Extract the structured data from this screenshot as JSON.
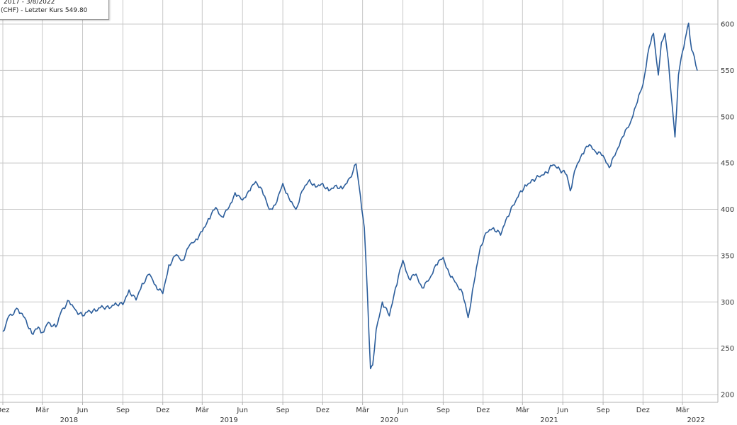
{
  "legend": {
    "range_text": "2017 - 3/8/2022",
    "series_text": "(CHF) - Letzter Kurs 549.80"
  },
  "colors": {
    "line": "#2b5d9b",
    "grid": "#c8c8c8"
  },
  "chart_data": {
    "type": "line",
    "title": "",
    "xlabel": "",
    "ylabel": "",
    "ylim": [
      195,
      615
    ],
    "y_ticks": [
      200,
      250,
      300,
      350,
      400,
      450,
      500,
      550,
      600
    ],
    "x_tick_labels": [
      "Dez",
      "Mär",
      "Jun",
      "Sep",
      "Dez",
      "Mär",
      "Jun",
      "Sep",
      "Dez",
      "Mär",
      "Jun",
      "Sep",
      "Dez",
      "Mär",
      "Jun",
      "Sep",
      "Dez",
      "Mär"
    ],
    "x_tick_dates": [
      "2017-12-01",
      "2018-03-01",
      "2018-06-01",
      "2018-09-01",
      "2018-12-01",
      "2019-03-01",
      "2019-06-01",
      "2019-09-01",
      "2019-12-01",
      "2020-03-01",
      "2020-06-01",
      "2020-09-01",
      "2020-12-01",
      "2021-03-01",
      "2021-06-01",
      "2021-09-01",
      "2021-12-01",
      "2022-03-01"
    ],
    "year_labels": [
      "2018",
      "2019",
      "2020",
      "2021",
      "2022"
    ],
    "year_label_dates": [
      "2018-05-01",
      "2019-05-01",
      "2020-05-01",
      "2021-05-01",
      "2022-04-01"
    ],
    "x_range": [
      "2017-12-01",
      "2022-04-15"
    ],
    "grid": true,
    "series": [
      {
        "name": "",
        "points": [
          [
            "2017-12-01",
            268
          ],
          [
            "2017-12-15",
            285
          ],
          [
            "2018-01-05",
            292
          ],
          [
            "2018-01-20",
            283
          ],
          [
            "2018-02-05",
            266
          ],
          [
            "2018-02-20",
            273
          ],
          [
            "2018-03-01",
            267
          ],
          [
            "2018-03-15",
            278
          ],
          [
            "2018-04-01",
            273
          ],
          [
            "2018-04-15",
            292
          ],
          [
            "2018-05-01",
            301
          ],
          [
            "2018-05-15",
            292
          ],
          [
            "2018-06-01",
            285
          ],
          [
            "2018-06-15",
            291
          ],
          [
            "2018-07-01",
            290
          ],
          [
            "2018-07-15",
            296
          ],
          [
            "2018-08-01",
            293
          ],
          [
            "2018-08-15",
            299
          ],
          [
            "2018-09-01",
            297
          ],
          [
            "2018-09-15",
            313
          ],
          [
            "2018-10-01",
            302
          ],
          [
            "2018-10-15",
            320
          ],
          [
            "2018-11-01",
            330
          ],
          [
            "2018-11-15",
            318
          ],
          [
            "2018-12-01",
            309
          ],
          [
            "2018-12-15",
            340
          ],
          [
            "2019-01-01",
            351
          ],
          [
            "2019-01-15",
            345
          ],
          [
            "2019-02-01",
            362
          ],
          [
            "2019-02-15",
            368
          ],
          [
            "2019-03-01",
            376
          ],
          [
            "2019-03-15",
            390
          ],
          [
            "2019-04-01",
            402
          ],
          [
            "2019-04-15",
            392
          ],
          [
            "2019-05-01",
            402
          ],
          [
            "2019-05-15",
            418
          ],
          [
            "2019-06-01",
            410
          ],
          [
            "2019-06-15",
            420
          ],
          [
            "2019-07-01",
            430
          ],
          [
            "2019-07-15",
            422
          ],
          [
            "2019-08-01",
            400
          ],
          [
            "2019-08-15",
            405
          ],
          [
            "2019-09-01",
            428
          ],
          [
            "2019-09-15",
            412
          ],
          [
            "2019-10-01",
            400
          ],
          [
            "2019-10-15",
            420
          ],
          [
            "2019-11-01",
            432
          ],
          [
            "2019-11-15",
            424
          ],
          [
            "2019-12-01",
            428
          ],
          [
            "2019-12-15",
            420
          ],
          [
            "2020-01-01",
            426
          ],
          [
            "2020-01-15",
            422
          ],
          [
            "2020-02-01",
            434
          ],
          [
            "2020-02-15",
            449
          ],
          [
            "2020-02-25",
            415
          ],
          [
            "2020-03-05",
            380
          ],
          [
            "2020-03-12",
            310
          ],
          [
            "2020-03-19",
            228
          ],
          [
            "2020-03-24",
            232
          ],
          [
            "2020-04-01",
            270
          ],
          [
            "2020-04-15",
            300
          ],
          [
            "2020-05-01",
            285
          ],
          [
            "2020-05-15",
            315
          ],
          [
            "2020-06-01",
            345
          ],
          [
            "2020-06-15",
            325
          ],
          [
            "2020-07-01",
            330
          ],
          [
            "2020-07-15",
            315
          ],
          [
            "2020-08-01",
            325
          ],
          [
            "2020-08-15",
            340
          ],
          [
            "2020-09-01",
            348
          ],
          [
            "2020-09-15",
            330
          ],
          [
            "2020-10-01",
            320
          ],
          [
            "2020-10-15",
            310
          ],
          [
            "2020-10-28",
            283
          ],
          [
            "2020-11-10",
            320
          ],
          [
            "2020-11-25",
            360
          ],
          [
            "2020-12-10",
            375
          ],
          [
            "2020-12-25",
            380
          ],
          [
            "2021-01-10",
            372
          ],
          [
            "2021-01-25",
            392
          ],
          [
            "2021-02-10",
            405
          ],
          [
            "2021-02-25",
            420
          ],
          [
            "2021-03-10",
            425
          ],
          [
            "2021-03-25",
            432
          ],
          [
            "2021-04-10",
            435
          ],
          [
            "2021-04-25",
            440
          ],
          [
            "2021-05-10",
            448
          ],
          [
            "2021-05-25",
            443
          ],
          [
            "2021-06-10",
            437
          ],
          [
            "2021-06-18",
            420
          ],
          [
            "2021-07-01",
            445
          ],
          [
            "2021-07-15",
            460
          ],
          [
            "2021-08-01",
            470
          ],
          [
            "2021-08-15",
            462
          ],
          [
            "2021-09-01",
            458
          ],
          [
            "2021-09-15",
            445
          ],
          [
            "2021-10-01",
            462
          ],
          [
            "2021-10-15",
            478
          ],
          [
            "2021-11-01",
            492
          ],
          [
            "2021-11-15",
            512
          ],
          [
            "2021-12-01",
            535
          ],
          [
            "2021-12-15",
            575
          ],
          [
            "2021-12-25",
            590
          ],
          [
            "2022-01-05",
            545
          ],
          [
            "2022-01-12",
            580
          ],
          [
            "2022-01-20",
            590
          ],
          [
            "2022-01-28",
            560
          ],
          [
            "2022-02-05",
            515
          ],
          [
            "2022-02-12",
            478
          ],
          [
            "2022-02-20",
            545
          ],
          [
            "2022-03-01",
            570
          ],
          [
            "2022-03-10",
            590
          ],
          [
            "2022-03-15",
            601
          ],
          [
            "2022-03-22",
            572
          ],
          [
            "2022-03-28",
            565
          ],
          [
            "2022-04-04",
            549.8
          ]
        ]
      }
    ]
  }
}
